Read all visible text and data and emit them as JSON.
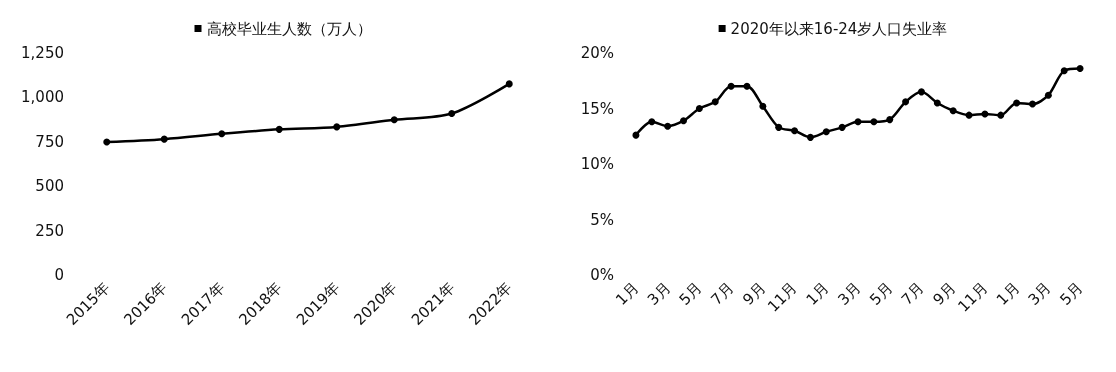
{
  "chart_data": [
    {
      "type": "line",
      "categories": [
        "2015年",
        "2016年",
        "2017年",
        "2018年",
        "2019年",
        "2020年",
        "2021年",
        "2022年"
      ],
      "series": [
        {
          "name": "高校毕业生人数（万人）",
          "color": "#000000",
          "values": [
            749,
            765,
            795,
            820,
            834,
            874,
            909,
            1076
          ]
        }
      ],
      "ylim": [
        0,
        1250
      ],
      "yticks": [
        0,
        250,
        500,
        750,
        {
          "value": 1000,
          "label": "1,000"
        },
        {
          "value": 1250,
          "label": "1,250"
        }
      ],
      "legend": "top",
      "marker": "circle"
    },
    {
      "type": "line",
      "categories": [
        "1月",
        null,
        "3月",
        null,
        "5月",
        null,
        "7月",
        null,
        "9月",
        null,
        "11月",
        null,
        "1月",
        null,
        "3月",
        null,
        "5月",
        null,
        "7月",
        null,
        "9月",
        null,
        "11月",
        null,
        "1月",
        null,
        "3月",
        null,
        "5月"
      ],
      "series": [
        {
          "name": "2020年以来16-24岁人口失业率",
          "color": "#000000",
          "values": [
            12.6,
            13.8,
            13.4,
            13.9,
            15.0,
            15.6,
            17.0,
            17.0,
            15.2,
            13.3,
            13.0,
            12.4,
            12.9,
            13.3,
            13.8,
            13.8,
            14.0,
            15.6,
            16.5,
            15.5,
            14.8,
            14.4,
            14.5,
            14.4,
            15.5,
            15.4,
            16.2,
            18.4,
            18.6
          ]
        }
      ],
      "ylim": [
        0,
        20
      ],
      "yticks": [
        {
          "value": 0,
          "label": "0%"
        },
        {
          "value": 5,
          "label": "5%"
        },
        {
          "value": 10,
          "label": "10%"
        },
        {
          "value": 15,
          "label": "15%"
        },
        {
          "value": 20,
          "label": "20%"
        }
      ],
      "legend": "top",
      "marker": "circle"
    }
  ]
}
